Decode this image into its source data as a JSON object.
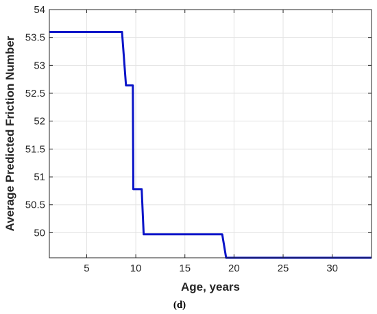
{
  "chart_data": {
    "type": "line",
    "title": "",
    "xlabel": "Age, years",
    "ylabel": "Average Predicted Friction Number",
    "caption": "(d)",
    "xlim": [
      1.2,
      34
    ],
    "ylim": [
      49.55,
      54
    ],
    "xticks": [
      5,
      10,
      15,
      20,
      25,
      30
    ],
    "yticks": [
      50,
      50.5,
      51,
      51.5,
      52,
      52.5,
      53,
      53.5,
      54
    ],
    "xtick_labels": [
      "5",
      "10",
      "15",
      "20",
      "25",
      "30"
    ],
    "ytick_labels": [
      "50",
      "50.5",
      "51",
      "51.5",
      "52",
      "52.5",
      "53",
      "53.5",
      "54"
    ],
    "grid": true,
    "colors": {
      "line": "#0a14c8",
      "grid": "#e3e3e3",
      "axis": "#262626"
    },
    "series": [
      {
        "x": [
          1.2,
          8.6,
          9.0,
          9.7,
          9.75,
          10.3,
          10.6,
          10.8,
          18.8,
          19.2,
          34.0
        ],
        "y": [
          53.6,
          53.6,
          52.64,
          52.64,
          50.78,
          50.78,
          50.78,
          49.97,
          49.97,
          49.55,
          49.55
        ]
      }
    ]
  }
}
